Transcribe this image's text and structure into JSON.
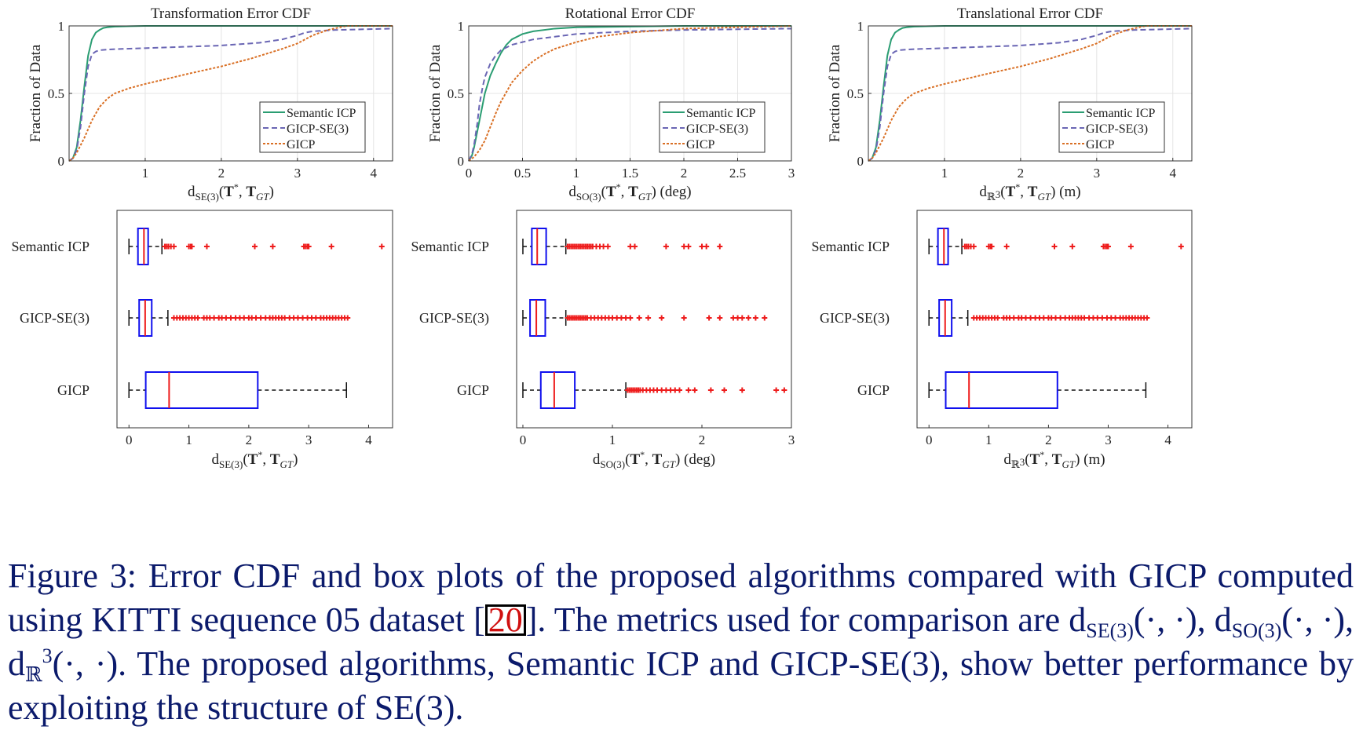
{
  "colors": {
    "semantic": "#2a9d72",
    "gicp_se3": "#6a66b4",
    "gicp": "#d96f24",
    "box": "#1010ee",
    "median": "#ee1c1c",
    "outlier": "#ee1c1c",
    "caption": "#0b1a6b"
  },
  "legend": [
    "Semantic ICP",
    "GICP-SE(3)",
    "GICP"
  ],
  "methods": [
    "Semantic ICP",
    "GICP-SE(3)",
    "GICP"
  ],
  "cdf_ylabel": "Fraction of Data",
  "chart_data": [
    {
      "type": "line",
      "title": "Transformation Error CDF",
      "xlabel": "dSE(3)(T*, TGT)",
      "ylabel": "Fraction of Data",
      "xlim": [
        0,
        4.25
      ],
      "ylim": [
        0,
        1
      ],
      "xticks": [
        "1",
        "2",
        "3",
        "4"
      ],
      "xtick_values": [
        1,
        2,
        3,
        4
      ],
      "yticks": [
        "0",
        "0.5",
        "1"
      ],
      "grid": true,
      "legend_position": "bottom-right",
      "series": [
        {
          "name": "Semantic ICP",
          "x": [
            0,
            0.05,
            0.1,
            0.15,
            0.2,
            0.25,
            0.3,
            0.35,
            0.4,
            0.45,
            0.5,
            0.6,
            0.8,
            1.0,
            4.25
          ],
          "y": [
            0,
            0.02,
            0.1,
            0.3,
            0.55,
            0.78,
            0.9,
            0.95,
            0.97,
            0.985,
            0.99,
            0.995,
            0.998,
            1,
            1
          ]
        },
        {
          "name": "GICP-SE(3)",
          "x": [
            0,
            0.05,
            0.1,
            0.15,
            0.2,
            0.25,
            0.3,
            0.35,
            0.4,
            0.5,
            0.7,
            1.0,
            1.5,
            2.0,
            2.5,
            2.8,
            3.0,
            3.1,
            3.2,
            3.5,
            4.25
          ],
          "y": [
            0,
            0.02,
            0.08,
            0.25,
            0.5,
            0.7,
            0.79,
            0.81,
            0.82,
            0.825,
            0.83,
            0.835,
            0.845,
            0.855,
            0.875,
            0.9,
            0.93,
            0.95,
            0.96,
            0.97,
            0.98
          ]
        },
        {
          "name": "GICP",
          "x": [
            0,
            0.05,
            0.1,
            0.2,
            0.3,
            0.4,
            0.5,
            0.6,
            0.8,
            1.0,
            1.3,
            1.6,
            2.0,
            2.4,
            2.8,
            3.0,
            3.2,
            3.4,
            3.6,
            3.65,
            4.25
          ],
          "y": [
            0,
            0.02,
            0.06,
            0.17,
            0.3,
            0.4,
            0.46,
            0.5,
            0.54,
            0.57,
            0.61,
            0.65,
            0.7,
            0.76,
            0.83,
            0.87,
            0.93,
            0.97,
            0.995,
            1,
            1
          ]
        }
      ]
    },
    {
      "type": "line",
      "title": "Rotational Error CDF",
      "xlabel": "dSO(3)(T*, TGT) (deg)",
      "ylabel": "Fraction of Data",
      "xlim": [
        0,
        3
      ],
      "ylim": [
        0,
        1
      ],
      "xticks": [
        "0",
        "0.5",
        "1",
        "1.5",
        "2",
        "2.5",
        "3"
      ],
      "xtick_values": [
        0,
        0.5,
        1,
        1.5,
        2,
        2.5,
        3
      ],
      "yticks": [
        "0",
        "0.5",
        "1"
      ],
      "grid": true,
      "legend_position": "bottom-right",
      "series": [
        {
          "name": "Semantic ICP",
          "x": [
            0,
            0.03,
            0.05,
            0.08,
            0.1,
            0.13,
            0.15,
            0.2,
            0.25,
            0.3,
            0.35,
            0.4,
            0.5,
            0.6,
            0.8,
            1.0,
            1.5,
            2.0,
            3.0
          ],
          "y": [
            0,
            0.04,
            0.1,
            0.22,
            0.3,
            0.42,
            0.5,
            0.63,
            0.72,
            0.8,
            0.86,
            0.9,
            0.94,
            0.96,
            0.98,
            0.99,
            0.995,
            1,
            1
          ]
        },
        {
          "name": "GICP-SE(3)",
          "x": [
            0,
            0.03,
            0.05,
            0.08,
            0.1,
            0.13,
            0.15,
            0.2,
            0.25,
            0.3,
            0.35,
            0.4,
            0.5,
            0.6,
            0.8,
            1.0,
            1.5,
            2.0,
            2.5,
            3.0
          ],
          "y": [
            0,
            0.05,
            0.12,
            0.28,
            0.42,
            0.55,
            0.62,
            0.72,
            0.78,
            0.82,
            0.84,
            0.86,
            0.88,
            0.9,
            0.92,
            0.94,
            0.96,
            0.97,
            0.975,
            0.98
          ]
        },
        {
          "name": "GICP",
          "x": [
            0,
            0.05,
            0.1,
            0.15,
            0.2,
            0.25,
            0.3,
            0.4,
            0.5,
            0.6,
            0.7,
            0.8,
            1.0,
            1.2,
            1.5,
            2.0,
            2.5,
            3.0
          ],
          "y": [
            0,
            0.03,
            0.08,
            0.15,
            0.25,
            0.35,
            0.44,
            0.58,
            0.67,
            0.74,
            0.79,
            0.83,
            0.88,
            0.92,
            0.95,
            0.98,
            0.99,
            1
          ]
        }
      ]
    },
    {
      "type": "line",
      "title": "Translational Error CDF",
      "xlabel": "dR3(T*, TGT) (m)",
      "ylabel": "Fraction of Data",
      "xlim": [
        0,
        4.25
      ],
      "ylim": [
        0,
        1
      ],
      "xticks": [
        "1",
        "2",
        "3",
        "4"
      ],
      "xtick_values": [
        1,
        2,
        3,
        4
      ],
      "yticks": [
        "0",
        "0.5",
        "1"
      ],
      "grid": true,
      "legend_position": "bottom-right",
      "series": [
        {
          "name": "Semantic ICP",
          "x": [
            0,
            0.05,
            0.1,
            0.15,
            0.2,
            0.25,
            0.3,
            0.35,
            0.4,
            0.45,
            0.5,
            0.6,
            0.8,
            1.0,
            4.25
          ],
          "y": [
            0,
            0.02,
            0.1,
            0.3,
            0.55,
            0.78,
            0.9,
            0.95,
            0.97,
            0.985,
            0.99,
            0.995,
            0.998,
            1,
            1
          ]
        },
        {
          "name": "GICP-SE(3)",
          "x": [
            0,
            0.05,
            0.1,
            0.15,
            0.2,
            0.25,
            0.3,
            0.35,
            0.4,
            0.5,
            0.7,
            1.0,
            1.5,
            2.0,
            2.5,
            2.8,
            3.0,
            3.1,
            3.2,
            3.5,
            4.25
          ],
          "y": [
            0,
            0.02,
            0.08,
            0.25,
            0.5,
            0.7,
            0.79,
            0.81,
            0.82,
            0.825,
            0.83,
            0.835,
            0.845,
            0.855,
            0.875,
            0.9,
            0.93,
            0.95,
            0.96,
            0.97,
            0.98
          ]
        },
        {
          "name": "GICP",
          "x": [
            0,
            0.05,
            0.1,
            0.2,
            0.3,
            0.4,
            0.5,
            0.6,
            0.8,
            1.0,
            1.3,
            1.6,
            2.0,
            2.4,
            2.8,
            3.0,
            3.2,
            3.4,
            3.6,
            3.65,
            4.25
          ],
          "y": [
            0,
            0.02,
            0.06,
            0.17,
            0.3,
            0.4,
            0.46,
            0.5,
            0.54,
            0.57,
            0.61,
            0.65,
            0.7,
            0.76,
            0.83,
            0.87,
            0.93,
            0.97,
            0.995,
            1,
            1
          ]
        }
      ]
    },
    {
      "type": "box",
      "xlabel": "dSE(3)(T*, TGT)",
      "xlim": [
        -0.2,
        4.4
      ],
      "xticks": [
        "0",
        "1",
        "2",
        "3",
        "4"
      ],
      "xtick_values": [
        0,
        1,
        2,
        3,
        4
      ],
      "categories": [
        "Semantic ICP",
        "GICP-SE(3)",
        "GICP"
      ],
      "boxes": [
        {
          "name": "Semantic ICP",
          "whisker_low": 0.0,
          "q1": 0.15,
          "median": 0.25,
          "q3": 0.32,
          "whisker_high": 0.55,
          "outliers": [
            0.6,
            0.63,
            0.66,
            0.7,
            0.75,
            1.0,
            1.03,
            1.05,
            1.3,
            2.1,
            2.4,
            2.92,
            2.95,
            2.98,
            3.0,
            3.38,
            4.22
          ]
        },
        {
          "name": "GICP-SE(3)",
          "whisker_low": 0.0,
          "q1": 0.17,
          "median": 0.27,
          "q3": 0.38,
          "whisker_high": 0.65,
          "outliers": [
            0.75,
            0.8,
            0.85,
            0.9,
            0.95,
            1.0,
            1.05,
            1.1,
            1.15,
            1.25,
            1.3,
            1.35,
            1.42,
            1.5,
            1.55,
            1.62,
            1.7,
            1.78,
            1.85,
            1.92,
            2.0,
            2.05,
            2.12,
            2.2,
            2.28,
            2.35,
            2.4,
            2.45,
            2.5,
            2.55,
            2.6,
            2.68,
            2.75,
            2.82,
            2.9,
            2.98,
            3.05,
            3.12,
            3.2,
            3.25,
            3.3,
            3.35,
            3.4,
            3.45,
            3.5,
            3.55,
            3.6,
            3.65
          ]
        },
        {
          "name": "GICP",
          "whisker_low": 0.0,
          "q1": 0.28,
          "median": 0.67,
          "q3": 2.15,
          "whisker_high": 3.63,
          "outliers": []
        }
      ]
    },
    {
      "type": "box",
      "xlabel": "dSO(3)(T*, TGT) (deg)",
      "xlim": [
        -0.07,
        3.0
      ],
      "xticks": [
        "0",
        "1",
        "2",
        "3"
      ],
      "xtick_values": [
        0,
        1,
        2,
        3
      ],
      "categories": [
        "Semantic ICP",
        "GICP-SE(3)",
        "GICP"
      ],
      "boxes": [
        {
          "name": "Semantic ICP",
          "whisker_low": 0.0,
          "q1": 0.1,
          "median": 0.16,
          "q3": 0.26,
          "whisker_high": 0.48,
          "outliers": [
            0.5,
            0.52,
            0.54,
            0.56,
            0.58,
            0.6,
            0.62,
            0.64,
            0.66,
            0.68,
            0.7,
            0.72,
            0.74,
            0.76,
            0.78,
            0.82,
            0.86,
            0.9,
            0.95,
            1.2,
            1.25,
            1.6,
            1.8,
            1.85,
            2.0,
            2.05,
            2.2
          ]
        },
        {
          "name": "GICP-SE(3)",
          "whisker_low": 0.0,
          "q1": 0.08,
          "median": 0.15,
          "q3": 0.25,
          "whisker_high": 0.48,
          "outliers": [
            0.5,
            0.52,
            0.54,
            0.56,
            0.58,
            0.6,
            0.62,
            0.64,
            0.66,
            0.68,
            0.7,
            0.72,
            0.76,
            0.8,
            0.84,
            0.88,
            0.92,
            0.96,
            1.0,
            1.05,
            1.1,
            1.15,
            1.2,
            1.3,
            1.4,
            1.55,
            1.8,
            2.08,
            2.2,
            2.35,
            2.4,
            2.45,
            2.52,
            2.6,
            2.7
          ]
        },
        {
          "name": "GICP",
          "whisker_low": 0.0,
          "q1": 0.2,
          "median": 0.35,
          "q3": 0.58,
          "whisker_high": 1.15,
          "outliers": [
            1.17,
            1.19,
            1.21,
            1.23,
            1.25,
            1.27,
            1.29,
            1.31,
            1.34,
            1.38,
            1.42,
            1.46,
            1.5,
            1.55,
            1.6,
            1.65,
            1.7,
            1.75,
            1.85,
            1.92,
            2.1,
            2.25,
            2.45,
            2.83,
            2.92
          ]
        }
      ]
    },
    {
      "type": "box",
      "xlabel": "dR3(T*, TGT) (m)",
      "xlim": [
        -0.2,
        4.4
      ],
      "xticks": [
        "0",
        "1",
        "2",
        "3",
        "4"
      ],
      "xtick_values": [
        0,
        1,
        2,
        3,
        4
      ],
      "categories": [
        "Semantic ICP",
        "GICP-SE(3)",
        "GICP"
      ],
      "boxes": [
        {
          "name": "Semantic ICP",
          "whisker_low": 0.0,
          "q1": 0.15,
          "median": 0.25,
          "q3": 0.32,
          "whisker_high": 0.55,
          "outliers": [
            0.6,
            0.63,
            0.66,
            0.7,
            0.75,
            1.0,
            1.03,
            1.05,
            1.3,
            2.1,
            2.4,
            2.92,
            2.95,
            2.98,
            3.0,
            3.38,
            4.22
          ]
        },
        {
          "name": "GICP-SE(3)",
          "whisker_low": 0.0,
          "q1": 0.17,
          "median": 0.27,
          "q3": 0.38,
          "whisker_high": 0.65,
          "outliers": [
            0.75,
            0.8,
            0.85,
            0.9,
            0.95,
            1.0,
            1.05,
            1.1,
            1.15,
            1.25,
            1.3,
            1.35,
            1.42,
            1.5,
            1.55,
            1.62,
            1.7,
            1.78,
            1.85,
            1.92,
            2.0,
            2.05,
            2.12,
            2.2,
            2.28,
            2.35,
            2.4,
            2.45,
            2.5,
            2.55,
            2.6,
            2.68,
            2.75,
            2.82,
            2.9,
            2.98,
            3.05,
            3.12,
            3.2,
            3.25,
            3.3,
            3.35,
            3.4,
            3.45,
            3.5,
            3.55,
            3.6,
            3.65
          ]
        },
        {
          "name": "GICP",
          "whisker_low": 0.0,
          "q1": 0.28,
          "median": 0.67,
          "q3": 2.15,
          "whisker_high": 3.63,
          "outliers": []
        }
      ]
    }
  ],
  "caption": {
    "figure_label": "Figure 3:",
    "line1": "Error CDF and box plots of the proposed algorithms compared with GICP computed using KITTI sequence 05 dataset [",
    "citation": "20",
    "line2": "]. The metrics used for comparison are ",
    "m1_base": "d",
    "m1_sub": "SE(3)",
    "m1_args": "(·, ·), ",
    "m2_base": "d",
    "m2_sub": "SO(3)",
    "m2_args": "(·, ·), ",
    "m3_base": "d",
    "m3_sub": "ℝ",
    "m3_sup": "3",
    "m3_args": "(·, ·).",
    "line3": " The proposed algorithms, Semantic ICP and GICP-SE(3), show better performance by exploiting the structure of SE(3)."
  }
}
